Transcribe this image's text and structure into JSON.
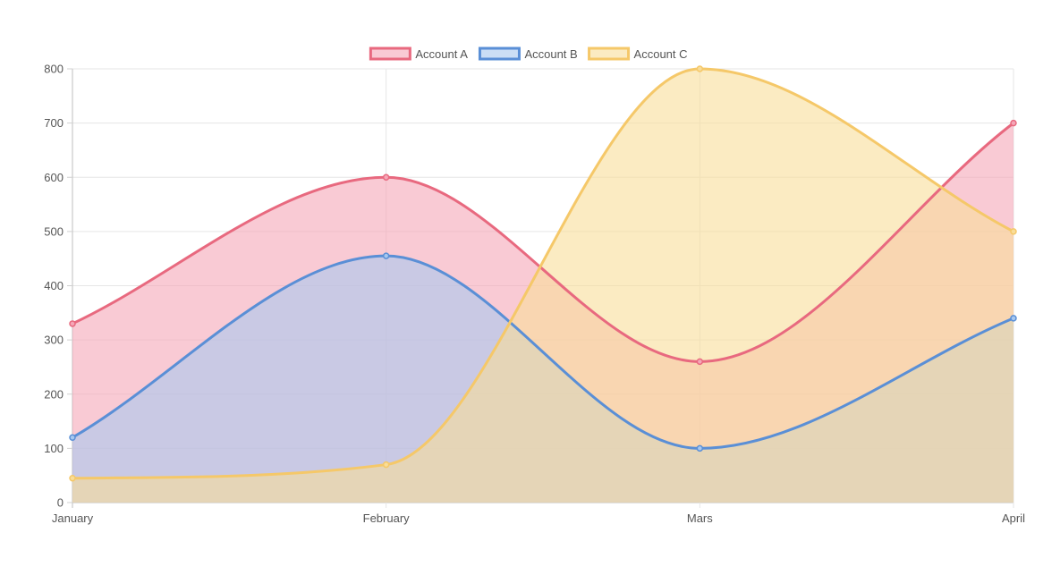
{
  "chart_data": {
    "type": "area",
    "categories": [
      "January",
      "February",
      "Mars",
      "April"
    ],
    "series": [
      {
        "name": "Account A",
        "values": [
          330,
          600,
          260,
          700
        ],
        "line_color": "#e8697f",
        "fill_color": "#f5a7b8"
      },
      {
        "name": "Account B",
        "values": [
          120,
          455,
          100,
          340
        ],
        "line_color": "#5a8fd6",
        "fill_color": "#a8c8ef"
      },
      {
        "name": "Account C",
        "values": [
          45,
          70,
          800,
          500
        ],
        "line_color": "#f5c869",
        "fill_color": "#f9dd99"
      }
    ],
    "ylim": [
      0,
      800
    ],
    "y_ticks": [
      0,
      100,
      200,
      300,
      400,
      500,
      600,
      700,
      800
    ],
    "grid": true,
    "legend_position": "top-center",
    "title": "",
    "xlabel": "",
    "ylabel": ""
  }
}
